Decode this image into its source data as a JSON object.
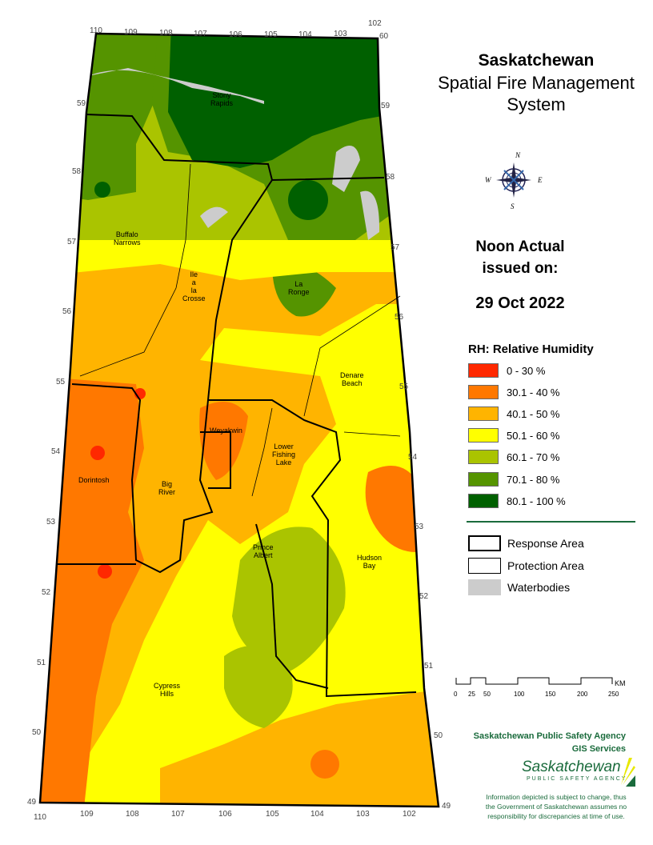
{
  "title": {
    "line1": "Saskatchewan",
    "line2": "Spatial Fire Management",
    "line3": "System"
  },
  "issue": {
    "line1": "Noon Actual",
    "line2": "issued on:",
    "date": "29 Oct 2022"
  },
  "legend": {
    "title": "RH: Relative Humidity",
    "classes": [
      {
        "label": "0 - 30 %",
        "color": "#ff2800"
      },
      {
        "label": "30.1 - 40 %",
        "color": "#ff7800"
      },
      {
        "label": "40.1 - 50 %",
        "color": "#ffb400"
      },
      {
        "label": "50.1 - 60 %",
        "color": "#ffff00"
      },
      {
        "label": "60.1 - 70 %",
        "color": "#aac400"
      },
      {
        "label": "70.1 - 80 %",
        "color": "#559400"
      },
      {
        "label": "80.1 - 100 %",
        "color": "#006000"
      }
    ],
    "features": [
      {
        "label": "Response Area",
        "symbol": "thick-outline"
      },
      {
        "label": "Protection Area",
        "symbol": "thin-outline"
      },
      {
        "label": "Waterbodies",
        "color": "#cccccc"
      }
    ]
  },
  "scalebar": {
    "ticks": [
      "0",
      "25",
      "50",
      "100",
      "150",
      "200",
      "250"
    ],
    "unit": "KM"
  },
  "agency": {
    "line1": "Saskatchewan Public Safety Agency",
    "line2": "GIS  Services",
    "logo": "Saskatchewan",
    "logo_sub": "PUBLIC SAFETY AGENCY"
  },
  "disclaimer": {
    "line1": "Information depicted is subject to change, thus",
    "line2": "the Government of Saskatchewan assumes no",
    "line3": "responsibility for discrepancies at time of use."
  },
  "compass": {
    "n": "N",
    "e": "E",
    "s": "S",
    "w": "W"
  },
  "map": {
    "longitudes_top": [
      "110",
      "109",
      "108",
      "107",
      "106",
      "105",
      "104",
      "103",
      "102"
    ],
    "longitudes_bottom": [
      "110",
      "109",
      "108",
      "107",
      "106",
      "105",
      "104",
      "103",
      "102"
    ],
    "latitudes_left": [
      "59",
      "58",
      "57",
      "56",
      "55",
      "54",
      "53",
      "52",
      "51",
      "50",
      "49"
    ],
    "latitudes_right": [
      "60",
      "59",
      "58",
      "57",
      "56",
      "55",
      "54",
      "53",
      "52",
      "51",
      "50",
      "49"
    ],
    "places": [
      {
        "name": "Stony\nRapids"
      },
      {
        "name": "Buffalo\nNarrows"
      },
      {
        "name": "Ile\na\nla\nCrosse"
      },
      {
        "name": "La\nRonge"
      },
      {
        "name": "Denare\nBeach"
      },
      {
        "name": "Weyakwin"
      },
      {
        "name": "Lower\nFishing\nLake"
      },
      {
        "name": "Dorintosh"
      },
      {
        "name": "Big\nRiver"
      },
      {
        "name": "Prince\nAlbert"
      },
      {
        "name": "Hudson\nBay"
      },
      {
        "name": "Cypress\nHills"
      }
    ]
  }
}
